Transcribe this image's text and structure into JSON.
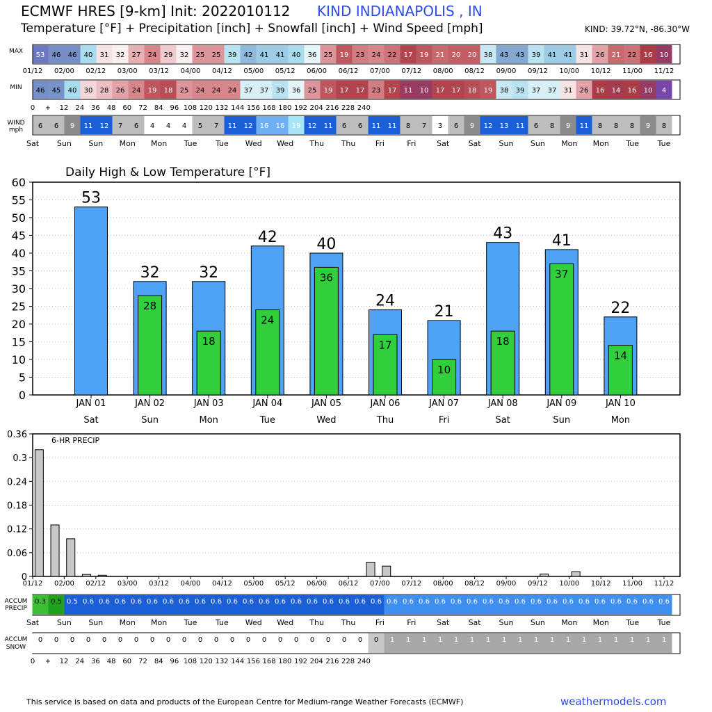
{
  "header": {
    "title": "ECMWF HRES [9-km] Init: 2022010112",
    "station": "KIND INDIANAPOLIS   , IN",
    "subtitle": "Temperature [°F] + Precipitation [inch] + Snowfall [inch] + Wind Speed [mph]",
    "coords": "KIND: 39.72°N, -86.30°W"
  },
  "footer": {
    "note": "This service is based on data and products of the European Centre for Medium-range Weather Forecasts (ECMWF)",
    "link": "weathermodels.com"
  },
  "strips": {
    "max_label": "MAX",
    "min_label": "MIN",
    "wind_label": [
      "WIND",
      "mph"
    ],
    "accum_precip_label": [
      "ACCUM",
      "PRECIP"
    ],
    "accum_snow_label": [
      "ACCUM",
      "SNOW"
    ],
    "max_values": [
      53,
      46,
      46,
      40,
      31,
      32,
      27,
      24,
      29,
      32,
      25,
      25,
      39,
      42,
      41,
      41,
      40,
      36,
      25,
      19,
      23,
      24,
      22,
      17,
      19,
      21,
      20,
      20,
      38,
      43,
      43,
      39,
      41,
      41,
      31,
      26,
      21,
      22,
      16,
      10
    ],
    "min_values": [
      46,
      45,
      40,
      30,
      28,
      26,
      24,
      19,
      18,
      25,
      24,
      24,
      24,
      37,
      37,
      39,
      36,
      25,
      19,
      17,
      17,
      23,
      17,
      11,
      10,
      17,
      17,
      18,
      19,
      38,
      39,
      37,
      37,
      31,
      26,
      16,
      14,
      16,
      10,
      4
    ],
    "wind_values": [
      6,
      6,
      9,
      11,
      12,
      7,
      6,
      4,
      4,
      4,
      5,
      7,
      11,
      12,
      16,
      16,
      19,
      12,
      11,
      6,
      6,
      11,
      11,
      8,
      7,
      3,
      6,
      9,
      12,
      13,
      11,
      6,
      8,
      9,
      11,
      8,
      8,
      8,
      9,
      8
    ],
    "accum_precip_values": [
      "0.3",
      "0.5",
      "0.5",
      "0.6",
      "0.6",
      "0.6",
      "0.6",
      "0.6",
      "0.6",
      "0.6",
      "0.6",
      "0.6",
      "0.6",
      "0.6",
      "0.6",
      "0.6",
      "0.6",
      "0.6",
      "0.6",
      "0.6",
      "0.6",
      "0.6",
      "0.6",
      "0.6",
      "0.6",
      "0.6",
      "0.6",
      "0.6",
      "0.6",
      "0.6",
      "0.6",
      "0.6",
      "0.6",
      "0.6",
      "0.6",
      "0.6",
      "0.6",
      "0.6",
      "0.6",
      "0.6"
    ],
    "accum_snow_values": [
      "0",
      "0",
      "0",
      "0",
      "0",
      "0",
      "0",
      "0",
      "0",
      "0",
      "0",
      "0",
      "0",
      "0",
      "0",
      "0",
      "0",
      "0",
      "0",
      "0",
      "0",
      "0",
      "1",
      "1",
      "1",
      "1",
      "1",
      "1",
      "1",
      "1",
      "1",
      "1",
      "1",
      "1",
      "1",
      "1",
      "1",
      "1",
      "1",
      "1"
    ],
    "date_ticks": [
      "01/12",
      "02/00",
      "02/12",
      "03/00",
      "03/12",
      "04/00",
      "04/12",
      "05/00",
      "05/12",
      "06/00",
      "06/12",
      "07/00",
      "07/12",
      "08/00",
      "08/12",
      "09/00",
      "09/12",
      "10/00",
      "10/12",
      "11/00",
      "11/12"
    ],
    "hour_ticks": [
      "0",
      "+",
      "12",
      "24",
      "36",
      "48",
      "60",
      "72",
      "84",
      "96",
      "108",
      "120",
      "132",
      "144",
      "156",
      "168",
      "180",
      "192",
      "204",
      "216",
      "228",
      "240"
    ],
    "day_ticks": [
      "Sat",
      "Sun",
      "Sun",
      "Mon",
      "Mon",
      "Tue",
      "Tue",
      "Wed",
      "Wed",
      "Thu",
      "Thu",
      "Fri",
      "Fri",
      "Sat",
      "Sat",
      "Sun",
      "Sun",
      "Mon",
      "Mon",
      "Tue",
      "Tue"
    ]
  },
  "chart_data": [
    {
      "type": "bar",
      "title": "Daily High & Low Temperature [°F]",
      "categories": [
        "JAN 01",
        "JAN 02",
        "JAN 03",
        "JAN 04",
        "JAN 05",
        "JAN 06",
        "JAN 07",
        "JAN 08",
        "JAN 09",
        "JAN 10"
      ],
      "weekdays": [
        "Sat",
        "Sun",
        "Mon",
        "Tue",
        "Wed",
        "Thu",
        "Fri",
        "Sat",
        "Sun",
        "Mon"
      ],
      "series": [
        {
          "values": [
            53,
            32,
            32,
            42,
            40,
            24,
            21,
            43,
            41,
            22
          ],
          "color": "#4ea3f7"
        },
        {
          "values": [
            null,
            28,
            18,
            24,
            36,
            17,
            10,
            18,
            37,
            14
          ],
          "color": "#2fd03c"
        }
      ],
      "ylim": [
        0,
        60
      ],
      "yticks": [
        0,
        5,
        10,
        15,
        20,
        25,
        30,
        35,
        40,
        45,
        50,
        55,
        60
      ],
      "grid": true
    },
    {
      "type": "bar",
      "title": "6-HR PRECIP",
      "x": [
        "01/12",
        "01/18",
        "02/00",
        "02/06",
        "02/12",
        "02/18",
        "03/00",
        "03/06",
        "03/12",
        "03/18",
        "04/00",
        "04/06",
        "04/12",
        "04/18",
        "05/00",
        "05/06",
        "05/12",
        "05/18",
        "06/00",
        "06/06",
        "06/12",
        "06/18",
        "07/00",
        "07/06",
        "07/12",
        "07/18",
        "08/00",
        "08/06",
        "08/12",
        "08/18",
        "09/00",
        "09/06",
        "09/12",
        "09/18",
        "10/00",
        "10/06",
        "10/12",
        "10/18",
        "11/00",
        "11/06",
        "11/12"
      ],
      "values": [
        0.32,
        0.13,
        0.095,
        0.005,
        0.003,
        0.001,
        0.001,
        0.001,
        0.001,
        0.001,
        0.001,
        0.001,
        0.001,
        0.001,
        0.001,
        0.001,
        0.001,
        0.001,
        0.001,
        0.001,
        0.001,
        0.036,
        0.026,
        0.001,
        0.001,
        0.001,
        0.001,
        0.001,
        0.001,
        0.001,
        0.001,
        0.001,
        0.006,
        0.001,
        0.012,
        0.001,
        0.001,
        0.001,
        0.001,
        0.001,
        0.001
      ],
      "ylim": [
        0,
        0.36
      ],
      "yticks": [
        "0",
        "0.06",
        "0.12",
        "0.18",
        "0.24",
        "0.3",
        "0.36"
      ],
      "color": "#c8c8c8",
      "grid": true
    }
  ],
  "colors": {
    "high_bar": "#4ea3f7",
    "low_bar": "#2fd03c",
    "precip_bar": "#c8c8c8",
    "accent": "#2b4ee8"
  }
}
